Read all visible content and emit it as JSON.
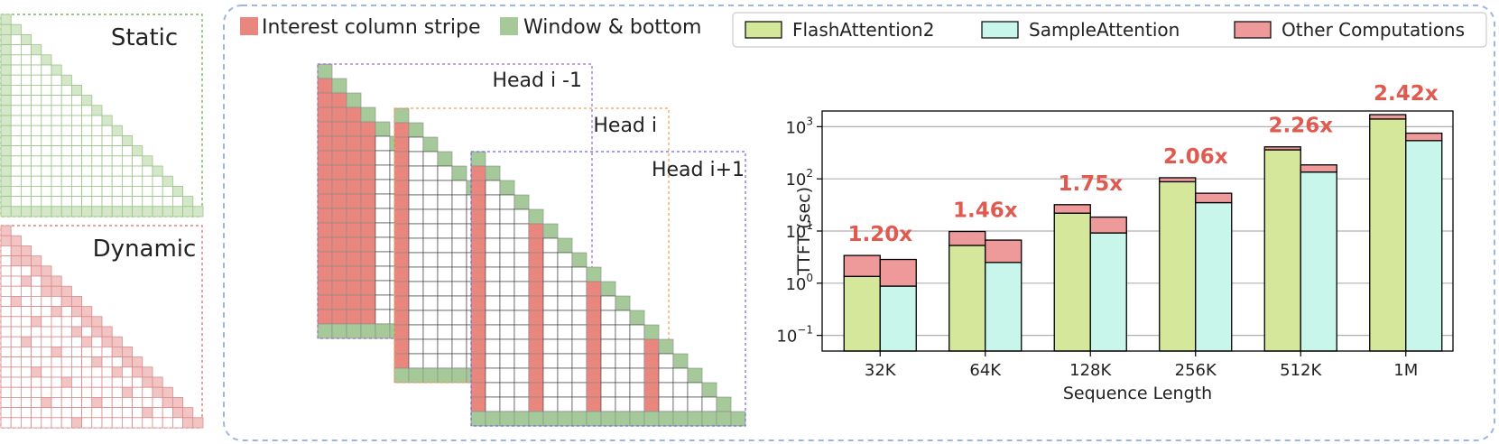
{
  "panels": {
    "static_label": "Static",
    "dynamic_label": "Dynamic"
  },
  "legend_left": {
    "interest": "Interest column stripe",
    "window": "Window & bottom"
  },
  "heads": {
    "prev": "Head i -1",
    "curr": "Head i",
    "next": "Head i+1"
  },
  "colors": {
    "flash": "#d4e79a",
    "sample": "#c9f6ea",
    "other": "#ef9a9a",
    "stripe": "#e9867e",
    "window": "#a6c99a",
    "speedup": "#e05a4f",
    "frame_blue": "#9fb5e6"
  },
  "chart_data": {
    "type": "bar",
    "stacked": true,
    "log_scale": true,
    "categories": [
      "32K",
      "64K",
      "128K",
      "256K",
      "512K",
      "1M"
    ],
    "series": [
      {
        "name": "FlashAttention2",
        "color": "#d4e79a",
        "values": [
          1.35,
          5.3,
          22,
          88,
          360,
          1400
        ]
      },
      {
        "name": "SampleAttention",
        "color": "#c9f6ea",
        "values": [
          0.88,
          2.5,
          9.2,
          35,
          135,
          540
        ]
      },
      {
        "name": "Other Computations",
        "color": "#ef9a9a",
        "flash_top": [
          3.4,
          9.8,
          32,
          105,
          410,
          1700
        ],
        "sample_top": [
          2.85,
          6.7,
          18.5,
          53,
          185,
          750
        ]
      }
    ],
    "speedups": [
      "1.20x",
      "1.46x",
      "1.75x",
      "2.06x",
      "2.26x",
      "2.42x"
    ],
    "xlabel": "Sequence Length",
    "ylabel": "TTFT (sec)",
    "ylim_exp": [
      -1.3,
      3.3
    ],
    "yticks": [
      {
        "base": "10",
        "exp": "−1",
        "value": 0.1
      },
      {
        "base": "10",
        "exp": "0",
        "value": 1
      },
      {
        "base": "10",
        "exp": "1",
        "value": 10
      },
      {
        "base": "10",
        "exp": "2",
        "value": 100
      },
      {
        "base": "10",
        "exp": "3",
        "value": 1000
      }
    ],
    "grid": true,
    "legend_position": "top"
  }
}
